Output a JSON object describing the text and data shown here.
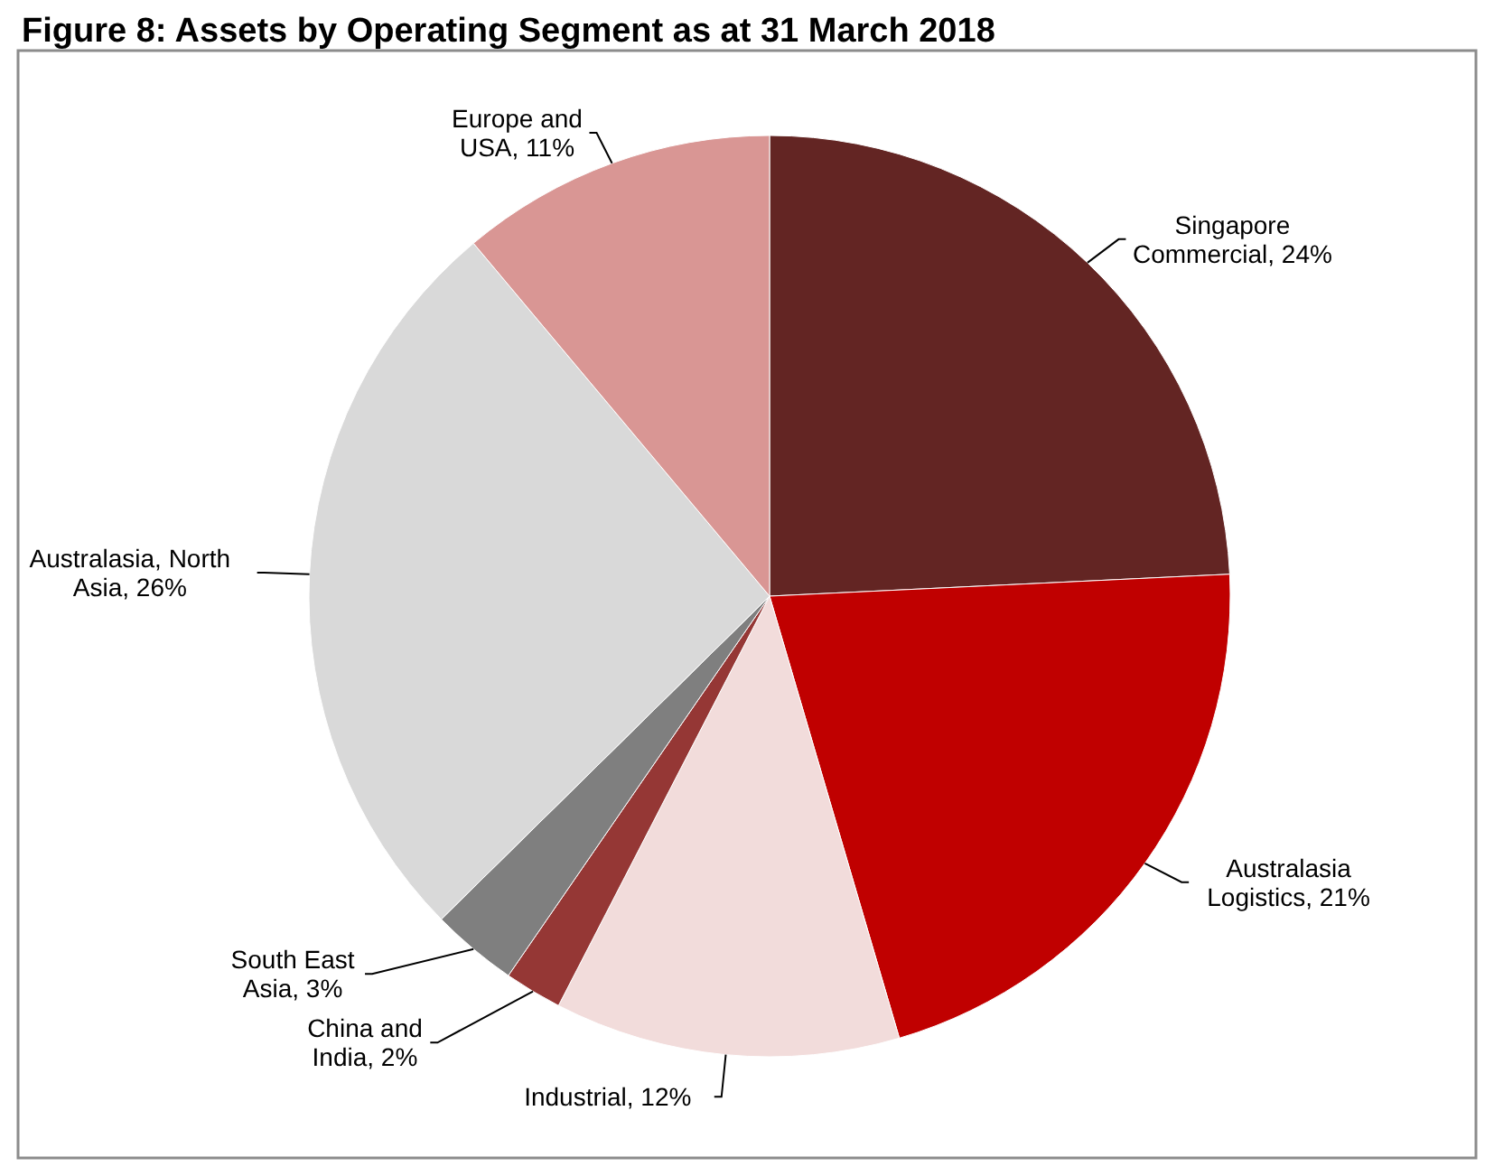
{
  "chart_data": {
    "type": "pie",
    "title": "Figure 8: Assets by Operating Segment as at 31 March 2018",
    "categories": [
      "Singapore Commercial",
      "Australasia Logistics",
      "Industrial",
      "China and India",
      "South East Asia",
      "Australasia, North Asia",
      "Europe and USA"
    ],
    "values": [
      24,
      21,
      12,
      2,
      3,
      26,
      11
    ],
    "value_labels": [
      "24%",
      "21%",
      "12%",
      "2%",
      "3%",
      "26%",
      "11%"
    ],
    "colors": [
      "#632523",
      "#c00000",
      "#f2dcdb",
      "#953735",
      "#7f7f7f",
      "#d9d9d9",
      "#d99694"
    ]
  }
}
